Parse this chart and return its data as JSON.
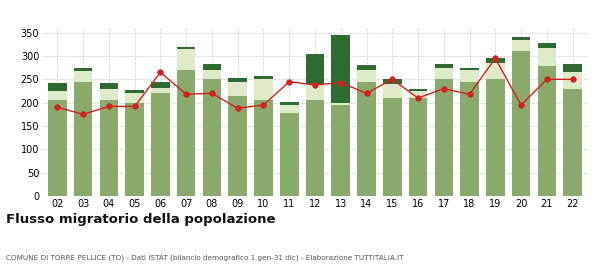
{
  "years": [
    "02",
    "03",
    "04",
    "05",
    "06",
    "07",
    "08",
    "09",
    "10",
    "11",
    "12",
    "13",
    "14",
    "15",
    "16",
    "17",
    "18",
    "19",
    "20",
    "21",
    "22"
  ],
  "iscritti_altri_comuni": [
    205,
    245,
    205,
    200,
    220,
    270,
    250,
    215,
    205,
    178,
    205,
    195,
    245,
    210,
    210,
    250,
    245,
    250,
    310,
    278,
    230
  ],
  "iscritti_estero": [
    20,
    22,
    25,
    20,
    12,
    45,
    20,
    30,
    45,
    18,
    35,
    5,
    25,
    30,
    15,
    25,
    25,
    35,
    25,
    40,
    35
  ],
  "iscritti_altri": [
    18,
    8,
    12,
    7,
    12,
    5,
    12,
    8,
    8,
    5,
    65,
    145,
    10,
    10,
    5,
    8,
    5,
    10,
    5,
    10,
    18
  ],
  "cancellati": [
    190,
    175,
    192,
    192,
    265,
    218,
    220,
    188,
    195,
    245,
    238,
    243,
    220,
    250,
    210,
    230,
    218,
    295,
    195,
    250,
    250
  ],
  "color_altri_comuni": "#8aaa6c",
  "color_estero": "#deebc8",
  "color_altri": "#2e6b30",
  "color_cancellati": "#d42020",
  "title": "Flusso migratorio della popolazione",
  "subtitle": "COMUNE DI TORRE PELLICE (TO) - Dati ISTAT (bilancio demografico 1 gen-31 dic) - Elaborazione TUTTITALIA.IT",
  "ylim": [
    0,
    360
  ],
  "yticks": [
    0,
    50,
    100,
    150,
    200,
    250,
    300,
    350
  ],
  "background_color": "#ffffff",
  "grid_color": "#cccccc"
}
